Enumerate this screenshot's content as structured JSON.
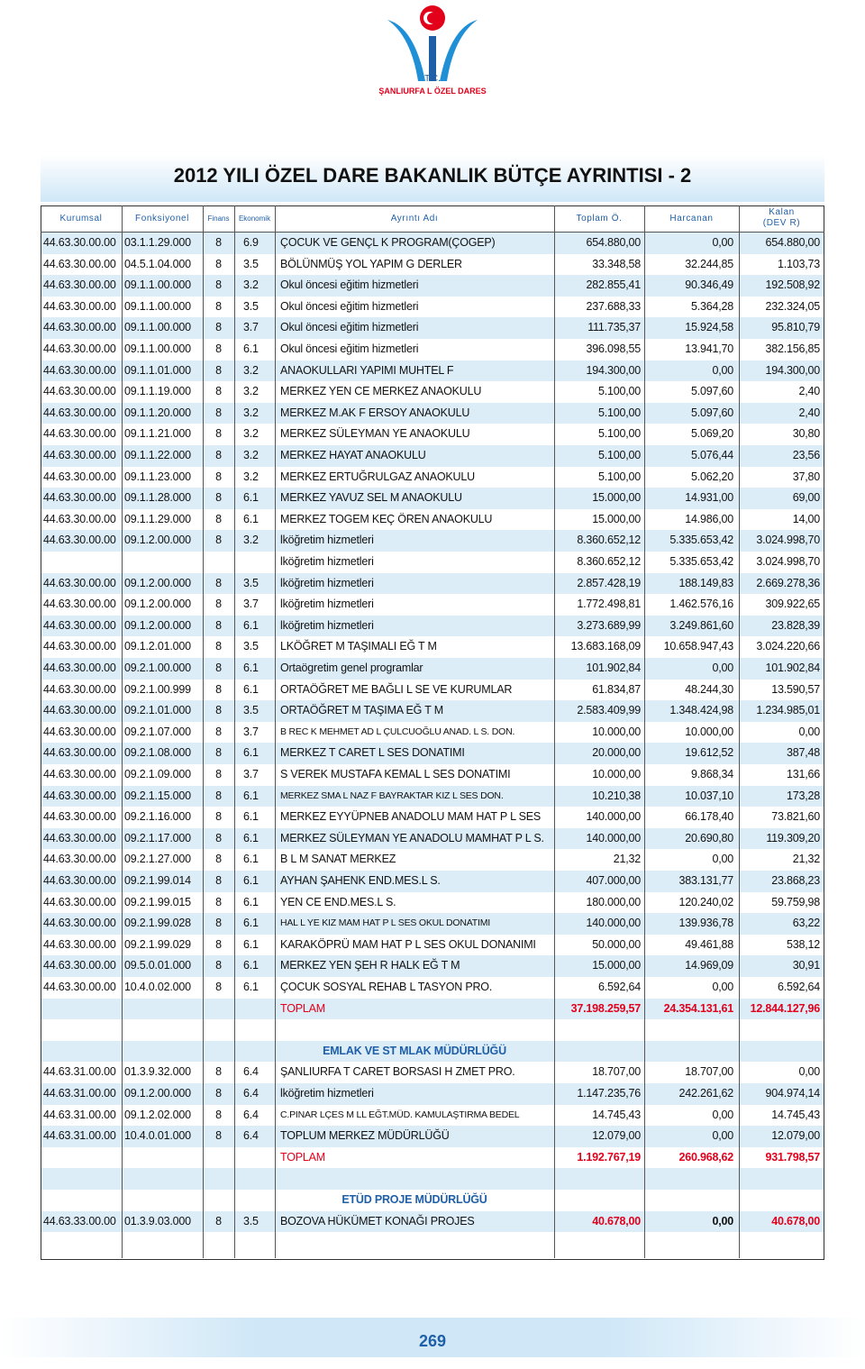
{
  "logo": {
    "line1": "T.C.",
    "line2": "ŞANLIURFA L ÖZEL DARES"
  },
  "title": "2012 YILI ÖZEL DARE BAKANLIK BÜTÇE AYRINTISI - 2",
  "table": {
    "headers": {
      "k": "Kurumsal",
      "f": "Fonksiyonel",
      "fin": "Finans",
      "e": "Ekonomik",
      "ad": "Ayrıntı Adı",
      "t": "Toplam Ö.",
      "h": "Harcanan",
      "kl": "Kalan\n(DEV R)"
    },
    "sections": [
      {
        "rows": [
          {
            "k": "44.63.30.00.00",
            "f": "03.1.1.29.000",
            "fin": "8",
            "e": "6.9",
            "ad": "ÇOCUK VE GENÇL K PROGRAM(ÇOGEP)",
            "t": "654.880,00",
            "h": "0,00",
            "kl": "654.880,00"
          },
          {
            "k": "44.63.30.00.00",
            "f": "04.5.1.04.000",
            "fin": "8",
            "e": "3.5",
            "ad": "BÖLÜNMÜŞ YOL YAPIM G DERLER",
            "t": "33.348,58",
            "h": "32.244,85",
            "kl": "1.103,73"
          },
          {
            "k": "44.63.30.00.00",
            "f": "09.1.1.00.000",
            "fin": "8",
            "e": "3.2",
            "ad": "Okul öncesi eğitim hizmetleri",
            "t": "282.855,41",
            "h": "90.346,49",
            "kl": "192.508,92"
          },
          {
            "k": "44.63.30.00.00",
            "f": "09.1.1.00.000",
            "fin": "8",
            "e": "3.5",
            "ad": "Okul öncesi eğitim hizmetleri",
            "t": "237.688,33",
            "h": "5.364,28",
            "kl": "232.324,05"
          },
          {
            "k": "44.63.30.00.00",
            "f": "09.1.1.00.000",
            "fin": "8",
            "e": "3.7",
            "ad": "Okul öncesi eğitim hizmetleri",
            "t": "111.735,37",
            "h": "15.924,58",
            "kl": "95.810,79"
          },
          {
            "k": "44.63.30.00.00",
            "f": "09.1.1.00.000",
            "fin": "8",
            "e": "6.1",
            "ad": "Okul öncesi eğitim hizmetleri",
            "t": "396.098,55",
            "h": "13.941,70",
            "kl": "382.156,85"
          },
          {
            "k": "44.63.30.00.00",
            "f": "09.1.1.01.000",
            "fin": "8",
            "e": "3.2",
            "ad": "ANAOKULLARI YAPIMI MUHTEL F",
            "t": "194.300,00",
            "h": "0,00",
            "kl": "194.300,00"
          },
          {
            "k": "44.63.30.00.00",
            "f": "09.1.1.19.000",
            "fin": "8",
            "e": "3.2",
            "ad": "MERKEZ YEN CE MERKEZ ANAOKULU",
            "t": "5.100,00",
            "h": "5.097,60",
            "kl": "2,40"
          },
          {
            "k": "44.63.30.00.00",
            "f": "09.1.1.20.000",
            "fin": "8",
            "e": "3.2",
            "ad": "MERKEZ M.AK F ERSOY ANAOKULU",
            "t": "5.100,00",
            "h": "5.097,60",
            "kl": "2,40"
          },
          {
            "k": "44.63.30.00.00",
            "f": "09.1.1.21.000",
            "fin": "8",
            "e": "3.2",
            "ad": "MERKEZ SÜLEYMAN YE ANAOKULU",
            "t": "5.100,00",
            "h": "5.069,20",
            "kl": "30,80"
          },
          {
            "k": "44.63.30.00.00",
            "f": "09.1.1.22.000",
            "fin": "8",
            "e": "3.2",
            "ad": "MERKEZ HAYAT ANAOKULU",
            "t": "5.100,00",
            "h": "5.076,44",
            "kl": "23,56"
          },
          {
            "k": "44.63.30.00.00",
            "f": "09.1.1.23.000",
            "fin": "8",
            "e": "3.2",
            "ad": "MERKEZ ERTUĞRULGAZ ANAOKULU",
            "t": "5.100,00",
            "h": "5.062,20",
            "kl": "37,80"
          },
          {
            "k": "44.63.30.00.00",
            "f": "09.1.1.28.000",
            "fin": "8",
            "e": "6.1",
            "ad": "MERKEZ YAVUZ SEL M ANAOKULU",
            "t": "15.000,00",
            "h": "14.931,00",
            "kl": "69,00"
          },
          {
            "k": "44.63.30.00.00",
            "f": "09.1.1.29.000",
            "fin": "8",
            "e": "6.1",
            "ad": "MERKEZ TOGEM KEÇ ÖREN ANAOKULU",
            "t": "15.000,00",
            "h": "14.986,00",
            "kl": "14,00"
          },
          {
            "k": "44.63.30.00.00",
            "f": "09.1.2.00.000",
            "fin": "8",
            "e": "3.2",
            "ad": "lköğretim hizmetleri",
            "t": "8.360.652,12",
            "h": "5.335.653,42",
            "kl": "3.024.998,70"
          },
          {
            "ad": "lköğretim hizmetleri",
            "t": "8.360.652,12",
            "h": "5.335.653,42",
            "kl": "3.024.998,70"
          },
          {
            "k": "44.63.30.00.00",
            "f": "09.1.2.00.000",
            "fin": "8",
            "e": "3.5",
            "ad": "lköğretim hizmetleri",
            "t": "2.857.428,19",
            "h": "188.149,83",
            "kl": "2.669.278,36"
          },
          {
            "k": "44.63.30.00.00",
            "f": "09.1.2.00.000",
            "fin": "8",
            "e": "3.7",
            "ad": "lköğretim hizmetleri",
            "t": "1.772.498,81",
            "h": "1.462.576,16",
            "kl": "309.922,65"
          },
          {
            "k": "44.63.30.00.00",
            "f": "09.1.2.00.000",
            "fin": "8",
            "e": "6.1",
            "ad": "lköğretim hizmetleri",
            "t": "3.273.689,99",
            "h": "3.249.861,60",
            "kl": "23.828,39"
          },
          {
            "k": "44.63.30.00.00",
            "f": "09.1.2.01.000",
            "fin": "8",
            "e": "3.5",
            "ad": "LKÖĞRET M TAŞIMALI EĞ T M",
            "t": "13.683.168,09",
            "h": "10.658.947,43",
            "kl": "3.024.220,66"
          },
          {
            "k": "44.63.30.00.00",
            "f": "09.2.1.00.000",
            "fin": "8",
            "e": "6.1",
            "ad": "Ortaögretim genel programlar",
            "t": "101.902,84",
            "h": "0,00",
            "kl": "101.902,84"
          },
          {
            "k": "44.63.30.00.00",
            "f": "09.2.1.00.999",
            "fin": "8",
            "e": "6.1",
            "ad": "ORTAÖĞRET ME BAĞLI L SE VE KURUMLAR",
            "t": "61.834,87",
            "h": "48.244,30",
            "kl": "13.590,57"
          },
          {
            "k": "44.63.30.00.00",
            "f": "09.2.1.01.000",
            "fin": "8",
            "e": "3.5",
            "ad": "ORTAÖĞRET M TAŞIMA EĞ T M",
            "t": "2.583.409,99",
            "h": "1.348.424,98",
            "kl": "1.234.985,01"
          },
          {
            "k": "44.63.30.00.00",
            "f": "09.2.1.07.000",
            "fin": "8",
            "e": "3.7",
            "ad": "B REC K MEHMET AD L ÇULCUOĞLU ANAD. L S. DON.",
            "t": "10.000,00",
            "h": "10.000,00",
            "kl": "0,00"
          },
          {
            "k": "44.63.30.00.00",
            "f": "09.2.1.08.000",
            "fin": "8",
            "e": "6.1",
            "ad": "MERKEZ T CARET L SES DONATIMI",
            "t": "20.000,00",
            "h": "19.612,52",
            "kl": "387,48"
          },
          {
            "k": "44.63.30.00.00",
            "f": "09.2.1.09.000",
            "fin": "8",
            "e": "3.7",
            "ad": "S VEREK MUSTAFA KEMAL L SES DONATIMI",
            "t": "10.000,00",
            "h": "9.868,34",
            "kl": "131,66"
          },
          {
            "k": "44.63.30.00.00",
            "f": "09.2.1.15.000",
            "fin": "8",
            "e": "6.1",
            "ad": "MERKEZ SMA L NAZ F BAYRAKTAR KIZ L SES DON.",
            "t": "10.210,38",
            "h": "10.037,10",
            "kl": "173,28"
          },
          {
            "k": "44.63.30.00.00",
            "f": "09.2.1.16.000",
            "fin": "8",
            "e": "6.1",
            "ad": "MERKEZ EYYÜPNEB ANADOLU MAM HAT P L SES",
            "t": "140.000,00",
            "h": "66.178,40",
            "kl": "73.821,60"
          },
          {
            "k": "44.63.30.00.00",
            "f": "09.2.1.17.000",
            "fin": "8",
            "e": "6.1",
            "ad": "MERKEZ SÜLEYMAN YE ANADOLU MAMHAT P L S.",
            "t": "140.000,00",
            "h": "20.690,80",
            "kl": "119.309,20"
          },
          {
            "k": "44.63.30.00.00",
            "f": "09.2.1.27.000",
            "fin": "8",
            "e": "6.1",
            "ad": "B L M SANAT MERKEZ",
            "t": "21,32",
            "h": "0,00",
            "kl": "21,32"
          },
          {
            "k": "44.63.30.00.00",
            "f": "09.2.1.99.014",
            "fin": "8",
            "e": "6.1",
            "ad": "AYHAN ŞAHENK END.MES.L S.",
            "t": "407.000,00",
            "h": "383.131,77",
            "kl": "23.868,23"
          },
          {
            "k": "44.63.30.00.00",
            "f": "09.2.1.99.015",
            "fin": "8",
            "e": "6.1",
            "ad": "YEN CE END.MES.L S.",
            "t": "180.000,00",
            "h": "120.240,02",
            "kl": "59.759,98"
          },
          {
            "k": "44.63.30.00.00",
            "f": "09.2.1.99.028",
            "fin": "8",
            "e": "6.1",
            "ad": "HAL L YE KIZ MAM HAT P L SES OKUL DONATIMI",
            "t": "140.000,00",
            "h": "139.936,78",
            "kl": "63,22"
          },
          {
            "k": "44.63.30.00.00",
            "f": "09.2.1.99.029",
            "fin": "8",
            "e": "6.1",
            "ad": "KARAKÖPRÜ MAM HAT P L SES OKUL DONANIMI",
            "t": "50.000,00",
            "h": "49.461,88",
            "kl": "538,12"
          },
          {
            "k": "44.63.30.00.00",
            "f": "09.5.0.01.000",
            "fin": "8",
            "e": "6.1",
            "ad": "MERKEZ YEN ŞEH R HALK EĞ T M",
            "t": "15.000,00",
            "h": "14.969,09",
            "kl": "30,91"
          },
          {
            "k": "44.63.30.00.00",
            "f": "10.4.0.02.000",
            "fin": "8",
            "e": "6.1",
            "ad": "ÇOCUK SOSYAL REHAB L TASYON PRO.",
            "t": "6.592,64",
            "h": "0,00",
            "kl": "6.592,64"
          }
        ],
        "total": {
          "ad": "TOPLAM",
          "t": "37.198.259,57",
          "h": "24.354.131,61",
          "kl": "12.844.127,96"
        }
      },
      {
        "title": "EMLAK VE ST MLAK MÜDÜRLÜĞÜ",
        "rows": [
          {
            "k": "44.63.31.00.00",
            "f": "01.3.9.32.000",
            "fin": "8",
            "e": "6.4",
            "ad": "ŞANLIURFA T CARET BORSASI H ZMET PRO.",
            "t": "18.707,00",
            "h": "18.707,00",
            "kl": "0,00"
          },
          {
            "k": "44.63.31.00.00",
            "f": "09.1.2.00.000",
            "fin": "8",
            "e": "6.4",
            "ad": "lköğretim hizmetleri",
            "t": "1.147.235,76",
            "h": "242.261,62",
            "kl": "904.974,14"
          },
          {
            "k": "44.63.31.00.00",
            "f": "09.1.2.02.000",
            "fin": "8",
            "e": "6.4",
            "ad": "C.PINAR LÇES M LL EĞT.MÜD. KAMULAŞTIRMA BEDEL",
            "t": "14.745,43",
            "h": "0,00",
            "kl": "14.745,43"
          },
          {
            "k": "44.63.31.00.00",
            "f": "10.4.0.01.000",
            "fin": "8",
            "e": "6.4",
            "ad": "TOPLUM MERKEZ MÜDÜRLÜĞÜ",
            "t": "12.079,00",
            "h": "0,00",
            "kl": "12.079,00"
          }
        ],
        "total": {
          "ad": "TOPLAM",
          "t": "1.192.767,19",
          "h": "260.968,62",
          "kl": "931.798,57"
        }
      },
      {
        "title": "ETÜD PROJE MÜDÜRLÜĞÜ",
        "rows": [
          {
            "k": "44.63.33.00.00",
            "f": "01.3.9.03.000",
            "fin": "8",
            "e": "3.5",
            "ad": "BOZOVA HÜKÜMET KONAĞI PROJES",
            "t": "40.678,00",
            "h": "0,00",
            "kl": "40.678,00"
          }
        ]
      }
    ]
  },
  "page_number": "269"
}
